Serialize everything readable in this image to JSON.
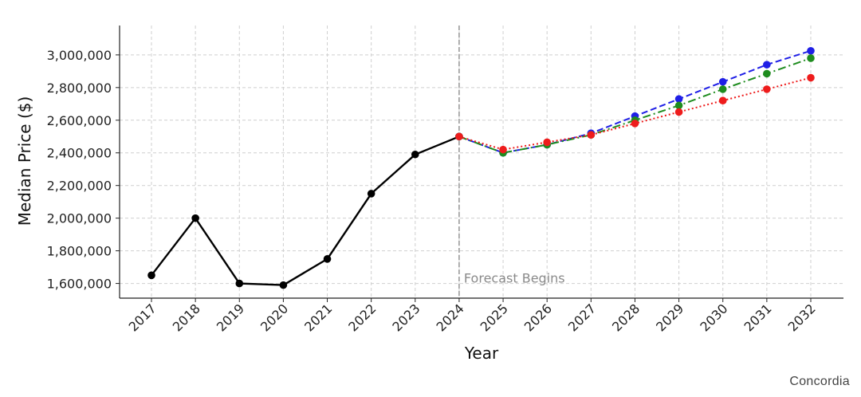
{
  "credit": "Concordia",
  "chart_data": {
    "type": "line",
    "xlabel": "Year",
    "ylabel": "Median Price ($)",
    "x": [
      2017,
      2018,
      2019,
      2020,
      2021,
      2022,
      2023,
      2024,
      2025,
      2026,
      2027,
      2028,
      2029,
      2030,
      2031,
      2032
    ],
    "ylim": [
      1510000,
      3180000
    ],
    "yticks": [
      1600000,
      1800000,
      2000000,
      2200000,
      2400000,
      2600000,
      2800000,
      3000000
    ],
    "ytick_labels": [
      "1,600,000",
      "1,800,000",
      "2,000,000",
      "2,200,000",
      "2,400,000",
      "2,600,000",
      "2,800,000",
      "3,000,000"
    ],
    "grid": true,
    "annotation": {
      "text": "Forecast Begins",
      "x": 2024
    },
    "series": [
      {
        "color": "#000000",
        "style": "solid",
        "x": [
          2017,
          2018,
          2019,
          2020,
          2021,
          2022,
          2023,
          2024
        ],
        "values": [
          1650000,
          2000000,
          1600000,
          1590000,
          1750000,
          2150000,
          2390000,
          2500000
        ]
      },
      {
        "color": "#1f1fe6",
        "style": "dashed",
        "x": [
          2024,
          2025,
          2026,
          2027,
          2028,
          2029,
          2030,
          2031,
          2032
        ],
        "values": [
          2500000,
          2400000,
          2450000,
          2520000,
          2625000,
          2730000,
          2835000,
          2940000,
          3025000
        ]
      },
      {
        "color": "#1e8c1e",
        "style": "dashdot",
        "x": [
          2024,
          2025,
          2026,
          2027,
          2028,
          2029,
          2030,
          2031,
          2032
        ],
        "values": [
          2500000,
          2400000,
          2450000,
          2510000,
          2600000,
          2690000,
          2790000,
          2885000,
          2980000
        ]
      },
      {
        "color": "#ee1c1c",
        "style": "dotted",
        "x": [
          2024,
          2025,
          2026,
          2027,
          2028,
          2029,
          2030,
          2031,
          2032
        ],
        "values": [
          2500000,
          2420000,
          2465000,
          2510000,
          2580000,
          2650000,
          2720000,
          2790000,
          2860000
        ]
      }
    ]
  }
}
